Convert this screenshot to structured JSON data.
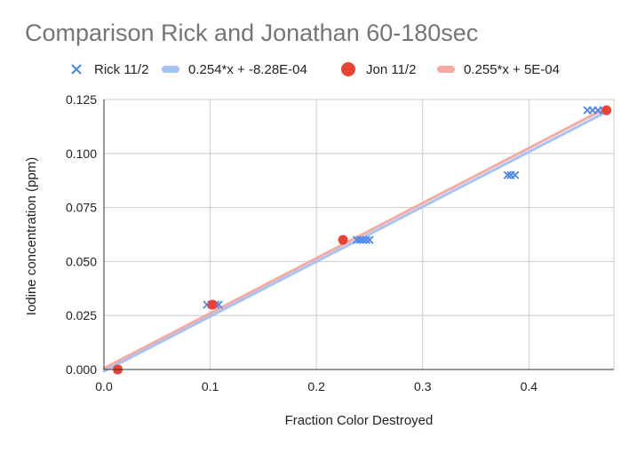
{
  "chart_data": {
    "type": "scatter",
    "title": "Comparison Rick and Jonathan 60-180sec",
    "xlabel": "Fraction Color Destroyed",
    "ylabel": "Iodine concentration (ppm)",
    "xlim": [
      0,
      0.48
    ],
    "ylim": [
      0,
      0.125
    ],
    "x_ticks": [
      "0.0",
      "0.1",
      "0.2",
      "0.3",
      "0.4"
    ],
    "x_tick_values": [
      0,
      0.1,
      0.2,
      0.3,
      0.4
    ],
    "y_ticks": [
      "0.000",
      "0.025",
      "0.050",
      "0.075",
      "0.100",
      "0.125"
    ],
    "y_tick_values": [
      0,
      0.025,
      0.05,
      0.075,
      0.1,
      0.125
    ],
    "grid": true,
    "legend_position": "top",
    "series": [
      {
        "name": "Rick 11/2",
        "kind": "scatter",
        "marker": "x",
        "color": "#4a86e8",
        "points": [
          {
            "x": 0.013,
            "y": 0.0
          },
          {
            "x": 0.097,
            "y": 0.03
          },
          {
            "x": 0.101,
            "y": 0.03
          },
          {
            "x": 0.105,
            "y": 0.03
          },
          {
            "x": 0.108,
            "y": 0.03
          },
          {
            "x": 0.238,
            "y": 0.06
          },
          {
            "x": 0.241,
            "y": 0.06
          },
          {
            "x": 0.244,
            "y": 0.06
          },
          {
            "x": 0.247,
            "y": 0.06
          },
          {
            "x": 0.25,
            "y": 0.06
          },
          {
            "x": 0.38,
            "y": 0.09
          },
          {
            "x": 0.383,
            "y": 0.09
          },
          {
            "x": 0.387,
            "y": 0.09
          },
          {
            "x": 0.455,
            "y": 0.12
          },
          {
            "x": 0.46,
            "y": 0.12
          },
          {
            "x": 0.465,
            "y": 0.12
          },
          {
            "x": 0.47,
            "y": 0.12
          }
        ]
      },
      {
        "name": "0.254*x + -8.28E-04",
        "kind": "trendline",
        "color": "#a4c2f4",
        "slope": 0.254,
        "intercept": -0.000828,
        "x_range": [
          0,
          0.475
        ]
      },
      {
        "name": "Jon 11/2",
        "kind": "scatter",
        "marker": "circle",
        "color": "#ea4335",
        "points": [
          {
            "x": 0.013,
            "y": 0.0
          },
          {
            "x": 0.102,
            "y": 0.03
          },
          {
            "x": 0.225,
            "y": 0.06
          },
          {
            "x": 0.473,
            "y": 0.12
          }
        ]
      },
      {
        "name": "0.255*x + 5E-04",
        "kind": "trendline",
        "color": "#f4a9a3",
        "slope": 0.255,
        "intercept": 0.0005,
        "x_range": [
          0,
          0.475
        ]
      }
    ]
  }
}
